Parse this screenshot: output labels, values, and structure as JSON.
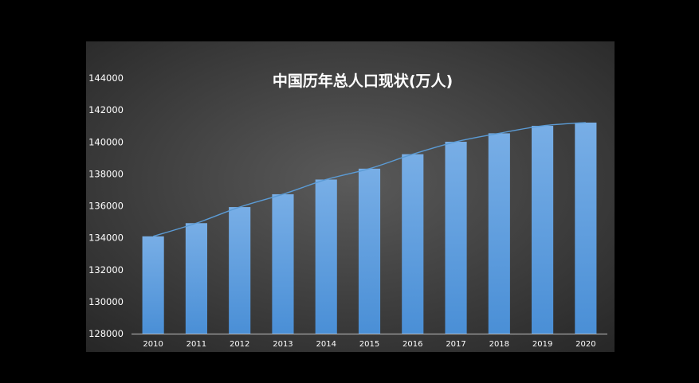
{
  "chart_data": {
    "type": "bar",
    "title": "中国历年总人口现状(万人)",
    "xlabel": "",
    "ylabel": "",
    "categories": [
      "2010",
      "2011",
      "2012",
      "2013",
      "2014",
      "2015",
      "2016",
      "2017",
      "2018",
      "2019",
      "2020"
    ],
    "series": [
      {
        "values": [
          134091,
          134916,
          135922,
          136726,
          137646,
          138326,
          139232,
          140011,
          140541,
          141008,
          141212
        ]
      }
    ],
    "trendline": true,
    "ylim": [
      128000,
      144000
    ],
    "yticks": [
      "128000",
      "130000",
      "132000",
      "134000",
      "136000",
      "138000",
      "140000",
      "142000",
      "144000"
    ],
    "grid": false,
    "legend": "none",
    "colors": {
      "page_background": "#000000",
      "plot_center": "#5a5a5a",
      "plot_edge": "#262626",
      "bar_top": "#78aee6",
      "bar_bottom": "#4a8fd6",
      "trend_line": "#5b9bd5",
      "text": "#ffffff",
      "axis_line": "#bfbfbf"
    }
  }
}
